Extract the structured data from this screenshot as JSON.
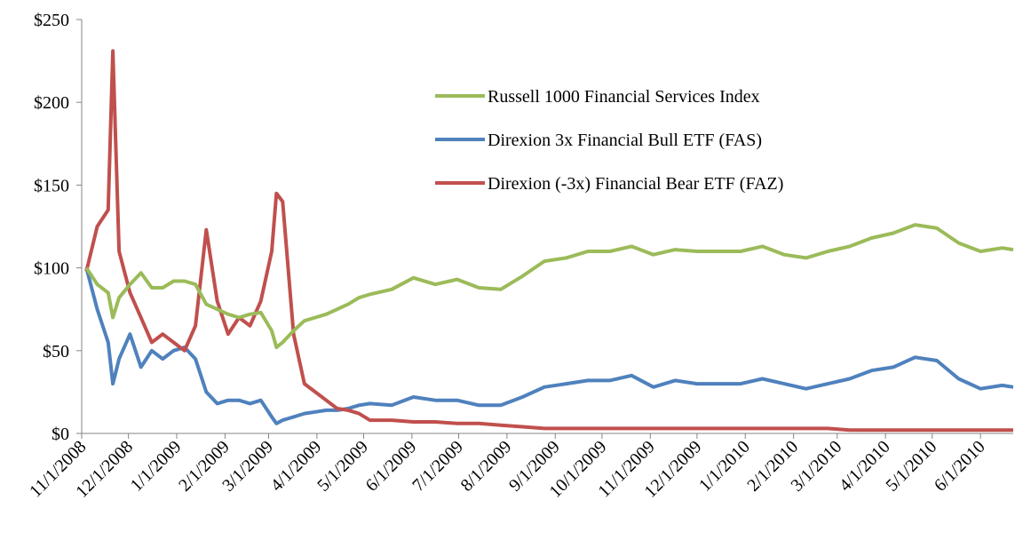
{
  "chart_data": {
    "type": "line",
    "x": [
      "11/4/2008",
      "11/11/2008",
      "11/18/2008",
      "11/21/2008",
      "11/25/2008",
      "12/2/2008",
      "12/9/2008",
      "12/16/2008",
      "12/23/2008",
      "12/30/2008",
      "1/6/2009",
      "1/13/2009",
      "1/20/2009",
      "1/27/2009",
      "2/3/2009",
      "2/10/2009",
      "2/17/2009",
      "2/24/2009",
      "3/3/2009",
      "3/6/2009",
      "3/10/2009",
      "3/17/2009",
      "3/24/2009",
      "3/31/2009",
      "4/7/2009",
      "4/14/2009",
      "4/21/2009",
      "4/28/2009",
      "5/5/2009",
      "5/19/2009",
      "6/2/2009",
      "6/16/2009",
      "6/30/2009",
      "7/14/2009",
      "7/28/2009",
      "8/11/2009",
      "8/25/2009",
      "9/8/2009",
      "9/22/2009",
      "10/6/2009",
      "10/20/2009",
      "11/3/2009",
      "11/17/2009",
      "12/1/2009",
      "12/15/2009",
      "12/29/2009",
      "1/12/2010",
      "1/26/2010",
      "2/9/2010",
      "2/23/2010",
      "3/9/2010",
      "3/23/2010",
      "4/6/2010",
      "4/20/2010",
      "5/4/2010",
      "5/18/2010",
      "6/1/2010",
      "6/15/2010",
      "6/22/2010"
    ],
    "series": [
      {
        "name": "Russell 1000 Financial Services Index",
        "color": "#9bbb59",
        "values": [
          100,
          90,
          85,
          70,
          82,
          90,
          97,
          88,
          88,
          92,
          92,
          90,
          78,
          75,
          72,
          70,
          72,
          73,
          62,
          52,
          55,
          62,
          68,
          70,
          72,
          75,
          78,
          82,
          84,
          87,
          94,
          90,
          93,
          88,
          87,
          95,
          104,
          106,
          110,
          110,
          113,
          108,
          111,
          110,
          110,
          110,
          113,
          108,
          106,
          110,
          113,
          118,
          121,
          126,
          124,
          115,
          110,
          112,
          111
        ]
      },
      {
        "name": "Direxion 3x Financial Bull ETF (FAS)",
        "color": "#4f81bd",
        "values": [
          100,
          75,
          55,
          30,
          45,
          60,
          40,
          50,
          45,
          50,
          52,
          45,
          25,
          18,
          20,
          20,
          18,
          20,
          10,
          6,
          8,
          10,
          12,
          13,
          14,
          14,
          15,
          17,
          18,
          17,
          22,
          20,
          20,
          17,
          17,
          22,
          28,
          30,
          32,
          32,
          35,
          28,
          32,
          30,
          30,
          30,
          33,
          30,
          27,
          30,
          33,
          38,
          40,
          46,
          44,
          33,
          27,
          29,
          28
        ]
      },
      {
        "name": "Direxion (-3x) Financial Bear ETF (FAZ)",
        "color": "#c0504d",
        "values": [
          98,
          125,
          135,
          231,
          110,
          85,
          70,
          55,
          60,
          55,
          50,
          65,
          123,
          80,
          60,
          70,
          65,
          80,
          110,
          145,
          140,
          60,
          30,
          25,
          20,
          15,
          14,
          12,
          8,
          8,
          7,
          7,
          6,
          6,
          5,
          4,
          3,
          3,
          3,
          3,
          3,
          3,
          3,
          3,
          3,
          3,
          3,
          3,
          3,
          3,
          2,
          2,
          2,
          2,
          2,
          2,
          2,
          2,
          2
        ]
      }
    ],
    "xlim": [
      "11/1/2008",
      "6/22/2010"
    ],
    "xticks": [
      "11/1/2008",
      "12/1/2008",
      "1/1/2009",
      "2/1/2009",
      "3/1/2009",
      "4/1/2009",
      "5/1/2009",
      "6/1/2009",
      "7/1/2009",
      "8/1/2009",
      "9/1/2009",
      "10/1/2009",
      "11/1/2009",
      "12/1/2009",
      "1/1/2010",
      "2/1/2010",
      "3/1/2010",
      "4/1/2010",
      "5/1/2010",
      "6/1/2010"
    ],
    "ylim": [
      0,
      250
    ],
    "yticks": [
      {
        "value": 0,
        "label": "$0"
      },
      {
        "value": 50,
        "label": "$50"
      },
      {
        "value": 100,
        "label": "$100"
      },
      {
        "value": 150,
        "label": "$150"
      },
      {
        "value": 200,
        "label": "$200"
      },
      {
        "value": 250,
        "label": "$250"
      }
    ],
    "grid": false
  }
}
